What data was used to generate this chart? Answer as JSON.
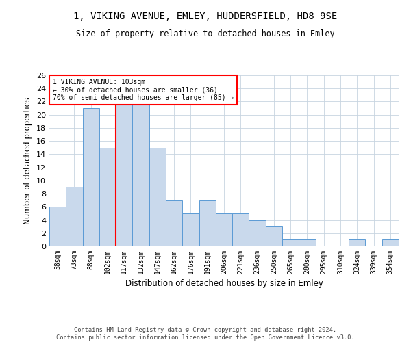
{
  "title1": "1, VIKING AVENUE, EMLEY, HUDDERSFIELD, HD8 9SE",
  "title2": "Size of property relative to detached houses in Emley",
  "xlabel": "Distribution of detached houses by size in Emley",
  "ylabel": "Number of detached properties",
  "categories": [
    "58sqm",
    "73sqm",
    "88sqm",
    "102sqm",
    "117sqm",
    "132sqm",
    "147sqm",
    "162sqm",
    "176sqm",
    "191sqm",
    "206sqm",
    "221sqm",
    "236sqm",
    "250sqm",
    "265sqm",
    "280sqm",
    "295sqm",
    "310sqm",
    "324sqm",
    "339sqm",
    "354sqm"
  ],
  "values": [
    6,
    9,
    21,
    15,
    22,
    22,
    15,
    7,
    5,
    7,
    5,
    5,
    4,
    3,
    1,
    1,
    0,
    0,
    1,
    0,
    1
  ],
  "bar_color": "#c9d9ec",
  "bar_edge_color": "#5b9bd5",
  "ylim": [
    0,
    26
  ],
  "yticks": [
    0,
    2,
    4,
    6,
    8,
    10,
    12,
    14,
    16,
    18,
    20,
    22,
    24,
    26
  ],
  "property_label": "1 VIKING AVENUE: 103sqm",
  "annotation_line1": "← 30% of detached houses are smaller (36)",
  "annotation_line2": "70% of semi-detached houses are larger (85) →",
  "vline_position": 3.5,
  "footer": "Contains HM Land Registry data © Crown copyright and database right 2024.\nContains public sector information licensed under the Open Government Licence v3.0.",
  "bg_color": "#ffffff",
  "grid_color": "#c8d4e0"
}
